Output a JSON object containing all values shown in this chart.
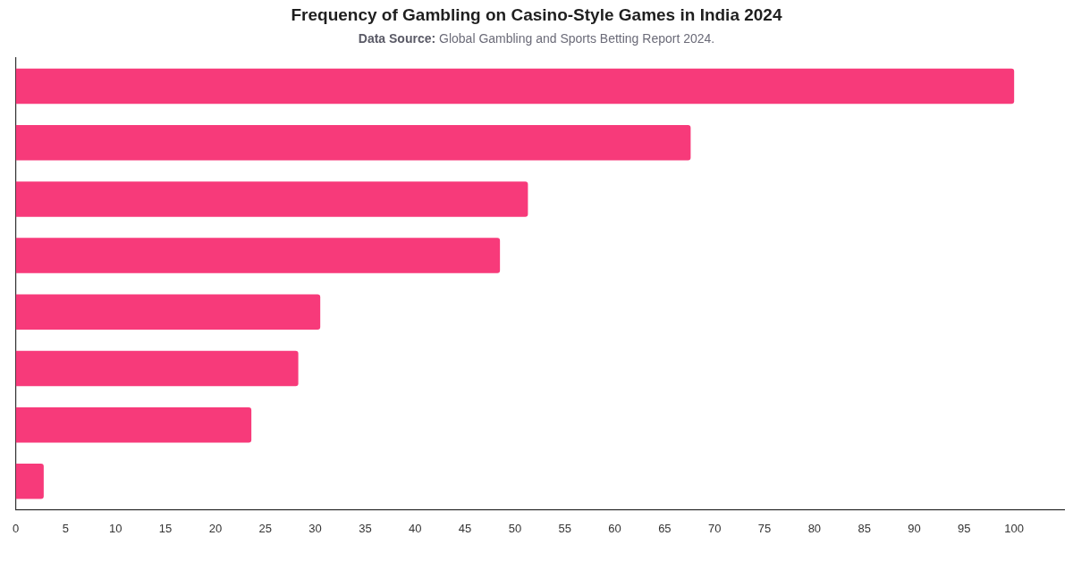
{
  "chart_data": {
    "type": "bar",
    "orientation": "horizontal",
    "title": "Frequency of Gambling on Casino-Style Games in India 2024",
    "subtitle": "Data Source: Global Gambling and Sports Betting Report 2024.",
    "categories": [
      null,
      null,
      null,
      null,
      null,
      null,
      null,
      null
    ],
    "values": [
      100,
      67.6,
      51.3,
      48.5,
      30.5,
      28.3,
      23.6,
      2.8
    ],
    "color": "#f73a7a",
    "xlim": [
      0,
      105
    ],
    "xticks": [
      0,
      5,
      10,
      15,
      20,
      25,
      30,
      35,
      40,
      45,
      50,
      55,
      60,
      65,
      70,
      75,
      80,
      85,
      90,
      95,
      100
    ],
    "tick_labels": "x"
  }
}
